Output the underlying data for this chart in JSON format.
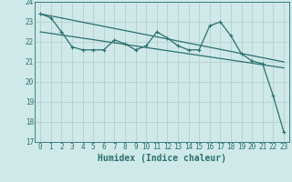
{
  "title": "",
  "xlabel": "Humidex (Indice chaleur)",
  "background_color": "#cfe8e8",
  "grid_color": "#b5d0d0",
  "line_color": "#2a7070",
  "ylim": [
    17,
    24
  ],
  "xlim": [
    -0.5,
    23.5
  ],
  "yticks": [
    17,
    18,
    19,
    20,
    21,
    22,
    23,
    24
  ],
  "xticks": [
    0,
    1,
    2,
    3,
    4,
    5,
    6,
    7,
    8,
    9,
    10,
    11,
    12,
    13,
    14,
    15,
    16,
    17,
    18,
    19,
    20,
    21,
    22,
    23
  ],
  "line1_x": [
    0,
    1,
    2,
    3,
    4,
    5,
    6,
    7,
    8,
    9,
    10,
    11,
    12,
    13,
    14,
    15,
    16,
    17,
    18,
    19,
    20,
    21,
    22,
    23
  ],
  "line1_y": [
    23.4,
    23.2,
    22.5,
    21.75,
    21.6,
    21.6,
    21.6,
    22.1,
    21.9,
    21.6,
    21.8,
    22.5,
    22.2,
    21.8,
    21.6,
    21.6,
    22.8,
    23.0,
    22.3,
    21.4,
    21.05,
    20.9,
    19.3,
    17.5
  ],
  "line2_x": [
    0,
    23
  ],
  "line2_y": [
    23.4,
    21.0
  ],
  "line3_x": [
    0,
    23
  ],
  "line3_y": [
    22.5,
    20.7
  ],
  "marker": "+",
  "markersize": 3.5,
  "linewidth": 0.9,
  "font_family": "monospace",
  "xlabel_fontsize": 7,
  "tick_fontsize": 5.5
}
